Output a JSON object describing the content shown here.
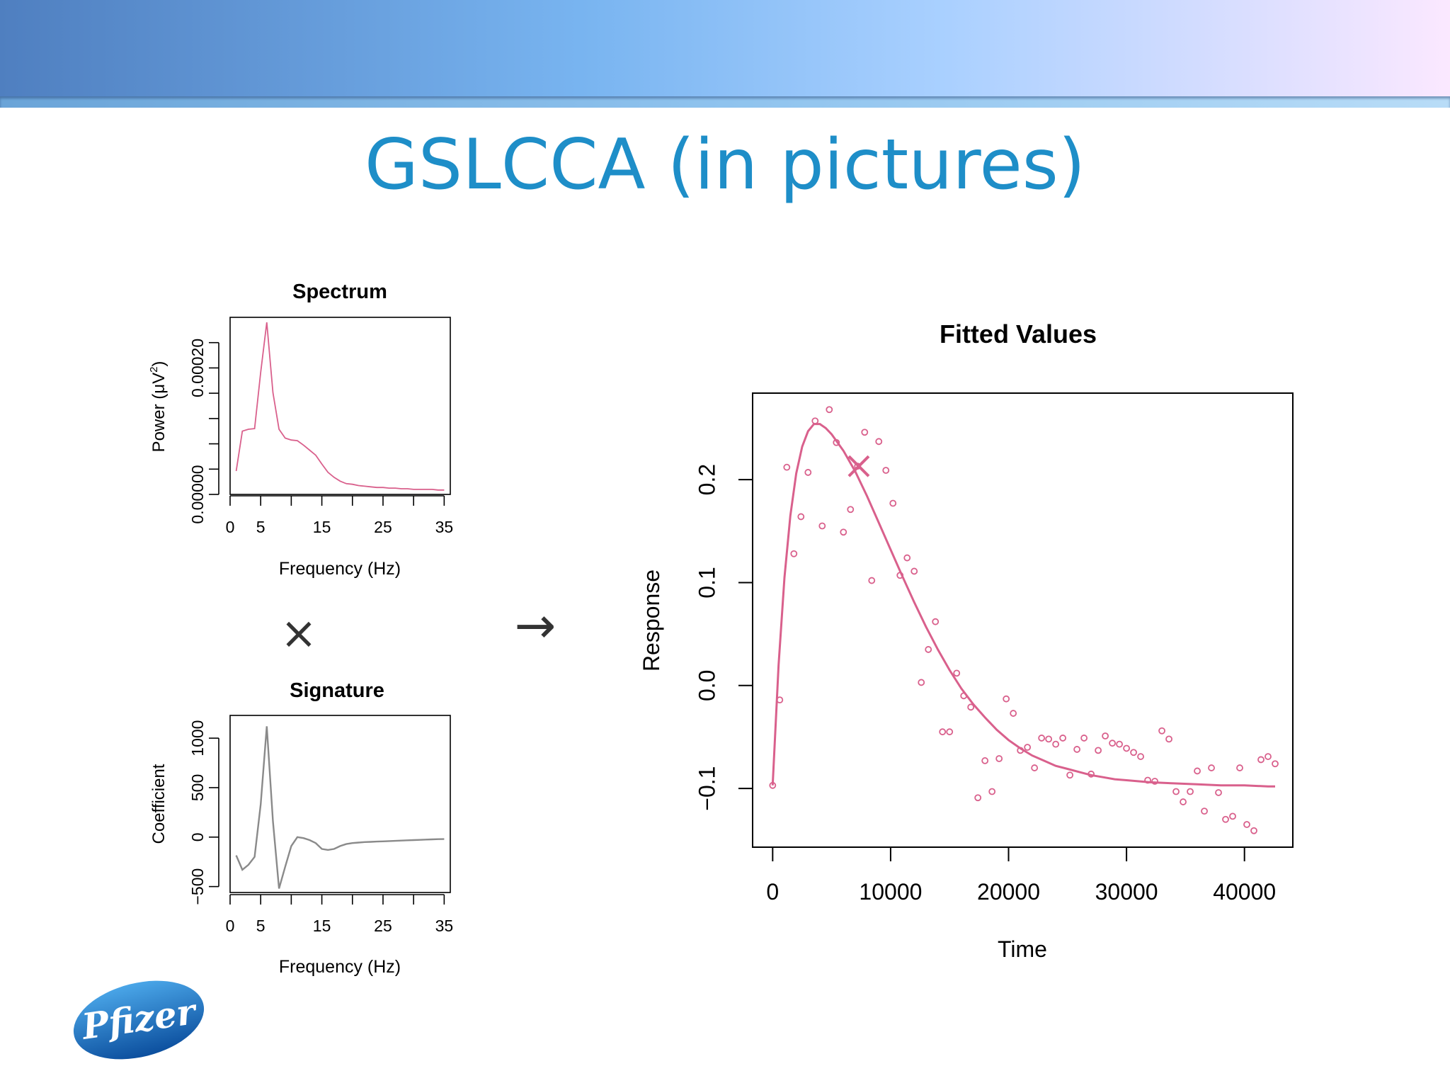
{
  "slide": {
    "title": "GSLCCA (in pictures)"
  },
  "logo": {
    "text": "Pfizer",
    "color": "#1a6fb5"
  },
  "operators": {
    "multiply": "×",
    "arrow": "→"
  },
  "colors": {
    "pink": "#d9608c",
    "gray": "#8a8a8a",
    "axis": "#000000"
  },
  "chart_data": [
    {
      "id": "spectrum",
      "type": "line",
      "title": "Spectrum",
      "xlabel": "Frequency (Hz)",
      "ylabel_prefix": "Power (μV",
      "ylabel_sup": "2",
      "ylabel_suffix": ")",
      "xlim": [
        0,
        36
      ],
      "ylim": [
        0,
        0.00028
      ],
      "xticks": [
        0,
        5,
        15,
        25,
        35
      ],
      "xtick_marks": [
        0,
        5,
        10,
        15,
        20,
        25,
        30,
        35
      ],
      "yticks": [
        0,
        0.0002
      ],
      "ytick_labels": [
        "0.00000",
        "0.00020"
      ],
      "ytick_marks": [
        0,
        4e-05,
        8e-05,
        0.00012,
        0.00016,
        0.0002,
        0.00024
      ],
      "series": [
        {
          "color": "#d9608c",
          "x": [
            1,
            2,
            3,
            4,
            5,
            6,
            7,
            8,
            9,
            10,
            11,
            12,
            13,
            14,
            15,
            16,
            17,
            18,
            19,
            20,
            21,
            22,
            23,
            24,
            25,
            26,
            27,
            28,
            29,
            30,
            31,
            32,
            33,
            34,
            35
          ],
          "y": [
            3.7e-05,
            0.0001,
            0.000103,
            0.000104,
            0.000193,
            0.000272,
            0.000161,
            0.000103,
            8.9e-05,
            8.6e-05,
            8.5e-05,
            7.8e-05,
            7e-05,
            6.2e-05,
            4.8e-05,
            3.5e-05,
            2.7e-05,
            2.1e-05,
            1.7e-05,
            1.6e-05,
            1.4e-05,
            1.3e-05,
            1.2e-05,
            1.1e-05,
            1.1e-05,
            1e-05,
            1e-05,
            9e-06,
            9e-06,
            8e-06,
            8e-06,
            8e-06,
            8e-06,
            7e-06,
            7e-06
          ]
        }
      ]
    },
    {
      "id": "signature",
      "type": "line",
      "title": "Signature",
      "xlabel": "Frequency (Hz)",
      "ylabel": "Coefficient",
      "xlim": [
        0,
        36
      ],
      "ylim": [
        -560,
        1230
      ],
      "xticks": [
        0,
        5,
        15,
        25,
        35
      ],
      "xtick_marks": [
        0,
        5,
        10,
        15,
        20,
        25,
        30,
        35
      ],
      "yticks": [
        -500,
        0,
        500,
        1000
      ],
      "ytick_labels": [
        "−500",
        "0",
        "500",
        "1000"
      ],
      "series": [
        {
          "color": "#8a8a8a",
          "x": [
            1,
            2,
            3,
            4,
            5,
            6,
            7,
            8,
            9,
            10,
            11,
            12,
            13,
            14,
            15,
            16,
            17,
            18,
            19,
            20,
            21,
            22,
            23,
            24,
            25,
            26,
            27,
            28,
            29,
            30,
            31,
            32,
            33,
            34,
            35
          ],
          "y": [
            -185,
            -330,
            -280,
            -200,
            330,
            1120,
            160,
            -520,
            -300,
            -90,
            0,
            -10,
            -30,
            -60,
            -120,
            -130,
            -120,
            -90,
            -70,
            -60,
            -55,
            -50,
            -48,
            -45,
            -43,
            -40,
            -38,
            -35,
            -32,
            -30,
            -28,
            -25,
            -23,
            -21,
            -20
          ]
        }
      ]
    },
    {
      "id": "fitted-values",
      "type": "scatter",
      "title": "Fitted Values",
      "xlabel": "Time",
      "ylabel": "Response",
      "xlim": [
        -1700,
        44100
      ],
      "ylim": [
        -0.157,
        0.284
      ],
      "xticks": [
        0,
        10000,
        20000,
        30000,
        40000
      ],
      "xtick_labels": [
        "0",
        "10000",
        "20000",
        "30000",
        "40000"
      ],
      "yticks": [
        -0.1,
        0,
        0.1,
        0.2
      ],
      "ytick_labels": [
        "−0.1",
        "0.0",
        "0.1",
        "0.2"
      ],
      "points_color": "#d9608c",
      "points": {
        "x": [
          0,
          600,
          1200,
          1800,
          2400,
          3000,
          3600,
          4200,
          4800,
          5400,
          6000,
          6600,
          7200,
          7800,
          8400,
          9000,
          9600,
          10200,
          10800,
          11400,
          12000,
          12600,
          13200,
          13800,
          14400,
          15000,
          15600,
          16200,
          16800,
          17400,
          18000,
          18600,
          19200,
          19800,
          20400,
          21000,
          21600,
          22200,
          22800,
          23400,
          24000,
          24600,
          25200,
          25800,
          26400,
          27000,
          27600,
          28200,
          28800,
          29400,
          30000,
          30600,
          31200,
          31800,
          32400,
          33000,
          33600,
          34200,
          34800,
          35400,
          36000,
          36600,
          37200,
          37800,
          38400,
          39000,
          39600,
          40200,
          40800,
          41400,
          42000,
          42600
        ],
        "y": [
          -0.097,
          -0.014,
          0.212,
          0.128,
          0.164,
          0.207,
          0.257,
          0.155,
          0.268,
          0.236,
          0.149,
          0.171,
          0.213,
          0.246,
          0.102,
          0.237,
          0.209,
          0.177,
          0.107,
          0.124,
          0.111,
          0.003,
          0.035,
          0.062,
          -0.045,
          -0.045,
          0.012,
          -0.01,
          -0.021,
          -0.109,
          -0.073,
          -0.103,
          -0.071,
          -0.013,
          -0.027,
          -0.063,
          -0.06,
          -0.08,
          -0.051,
          -0.052,
          -0.057,
          -0.051,
          -0.087,
          -0.062,
          -0.051,
          -0.086,
          -0.063,
          -0.049,
          -0.056,
          -0.057,
          -0.061,
          -0.065,
          -0.069,
          -0.092,
          -0.093,
          -0.044,
          -0.052,
          -0.103,
          -0.113,
          -0.103,
          -0.083,
          -0.122,
          -0.08,
          -0.104,
          -0.13,
          -0.127,
          -0.08,
          -0.135,
          -0.141,
          -0.072,
          -0.069,
          -0.076
        ]
      },
      "fitted_curve": {
        "x": [
          0,
          500,
          1000,
          1500,
          2000,
          2500,
          3000,
          3500,
          4000,
          4500,
          5000,
          6000,
          7000,
          8000,
          9000,
          10000,
          11000,
          12000,
          13000,
          14000,
          15000,
          16000,
          17000,
          18000,
          19000,
          20000,
          21000,
          22000,
          23000,
          24000,
          25000,
          26000,
          27000,
          28000,
          29000,
          30000,
          32000,
          34000,
          36000,
          38000,
          40000,
          42000,
          42600
        ],
        "y": [
          -0.097,
          0.02,
          0.105,
          0.165,
          0.206,
          0.232,
          0.247,
          0.254,
          0.254,
          0.25,
          0.244,
          0.228,
          0.208,
          0.184,
          0.158,
          0.132,
          0.106,
          0.081,
          0.057,
          0.035,
          0.015,
          -0.003,
          -0.018,
          -0.031,
          -0.043,
          -0.053,
          -0.061,
          -0.068,
          -0.073,
          -0.078,
          -0.081,
          -0.084,
          -0.087,
          -0.089,
          -0.091,
          -0.092,
          -0.094,
          -0.095,
          -0.096,
          -0.097,
          -0.097,
          -0.098,
          -0.098
        ]
      },
      "highlight": {
        "x": 7300,
        "y": 0.213
      }
    }
  ]
}
